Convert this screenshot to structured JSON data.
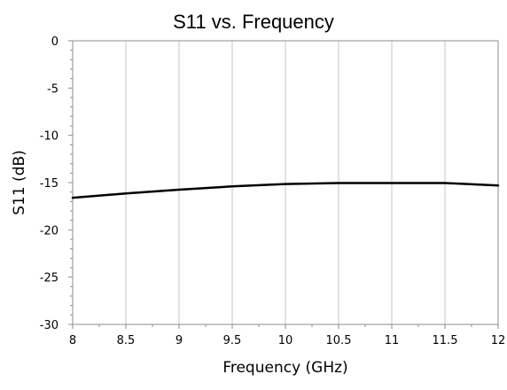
{
  "chart_data": {
    "type": "line",
    "title": "S11 vs. Frequency",
    "xlabel": "Frequency (GHz)",
    "ylabel": "S11 (dB)",
    "xlim": [
      8,
      12
    ],
    "ylim": [
      -30,
      0
    ],
    "x_ticks": [
      8,
      8.5,
      9,
      9.5,
      10,
      10.5,
      11,
      11.5,
      12
    ],
    "x_tick_labels": [
      "8",
      "8.5",
      "9",
      "9.5",
      "10",
      "10.5",
      "11",
      "11.5",
      "12"
    ],
    "y_ticks": [
      0,
      -5,
      -10,
      -15,
      -20,
      -25,
      -30
    ],
    "y_tick_labels": [
      "0",
      "-5",
      "-10",
      "-15",
      "-20",
      "-25",
      "-30"
    ],
    "grid": "vertical",
    "legend": "none",
    "series": [
      {
        "color": "#000000",
        "x": [
          8,
          8.5,
          9,
          9.5,
          10,
          10.5,
          11,
          11.5,
          12
        ],
        "y": [
          -16.6,
          -16.15,
          -15.75,
          -15.4,
          -15.15,
          -15.05,
          -15.05,
          -15.05,
          -15.3
        ]
      }
    ]
  }
}
